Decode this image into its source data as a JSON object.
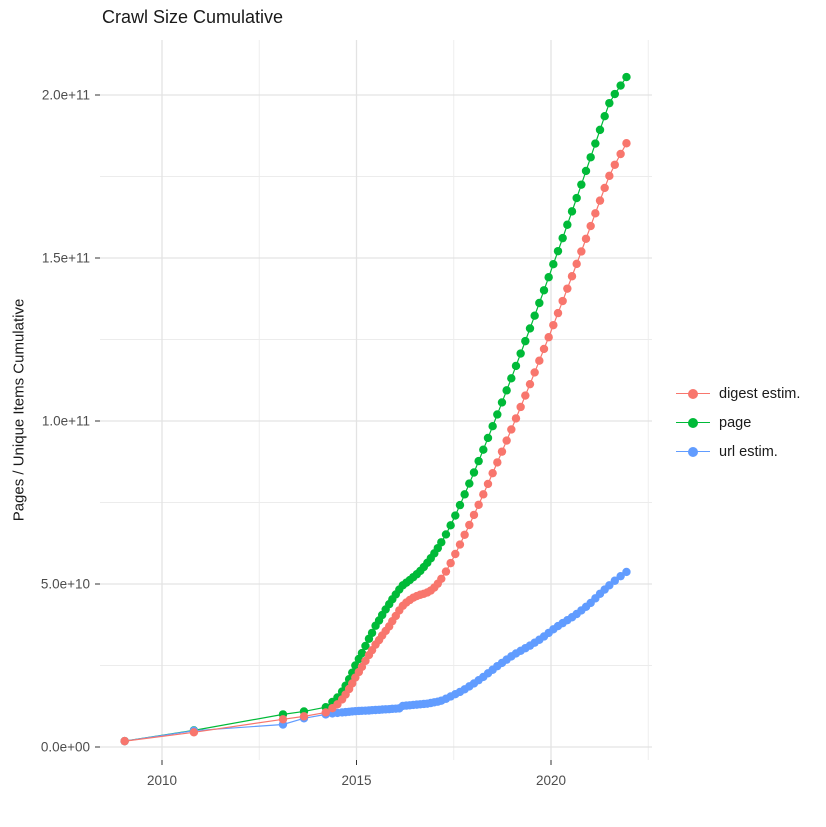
{
  "title": "Crawl Size Cumulative",
  "y_axis": {
    "title": "Pages / Unique Items Cumulative",
    "tick_labels": [
      "0.0e+00",
      "5.0e+10",
      "1.0e+11",
      "1.5e+11",
      "2.0e+11"
    ],
    "tick_values": [
      0,
      50,
      100,
      150,
      200
    ],
    "minor_tick_values": [
      25,
      75,
      125,
      175
    ]
  },
  "x_axis": {
    "title": "",
    "tick_labels": [
      "2010",
      "2015",
      "2020"
    ],
    "tick_values": [
      2010,
      2015,
      2020
    ],
    "minor_tick_values": [
      2012.5,
      2017.5,
      2022.5
    ]
  },
  "legend": {
    "items": [
      {
        "label": "digest estim.",
        "color": "#F8766D"
      },
      {
        "label": "page",
        "color": "#00BA38"
      },
      {
        "label": "url estim.",
        "color": "#619CFF"
      }
    ]
  },
  "colors": {
    "background": "#FFFFFF",
    "grid_major": "#E3E3E3",
    "grid_minor": "#ECECEC",
    "tick_mark": "#333333",
    "tick_label": "#4D4D4D",
    "text": "#1A1A1A",
    "digest": "#F8766D",
    "page": "#00BA38",
    "url": "#619CFF"
  },
  "chart_data": {
    "type": "line",
    "title": "Crawl Size Cumulative",
    "xlabel": "",
    "ylabel": "Pages / Unique Items Cumulative",
    "value_unit": "1e9 (values below are in billions of pages / unique items)",
    "xlim": [
      2008.4,
      2022.6
    ],
    "ylim": [
      0,
      216
    ],
    "x_ticks": [
      2010,
      2015,
      2020
    ],
    "y_ticks": [
      0,
      50,
      100,
      150,
      200
    ],
    "grid": true,
    "legend_position": "right",
    "marker": "point",
    "x": [
      2009.04,
      2010.82,
      2013.11,
      2013.65,
      2014.21,
      2014.38,
      2014.51,
      2014.63,
      2014.72,
      2014.81,
      2014.89,
      2014.97,
      2015.06,
      2015.14,
      2015.23,
      2015.32,
      2015.4,
      2015.49,
      2015.58,
      2015.66,
      2015.75,
      2015.84,
      2015.92,
      2016.01,
      2016.1,
      2016.19,
      2016.28,
      2016.37,
      2016.46,
      2016.55,
      2016.64,
      2016.73,
      2016.82,
      2016.91,
      2017.0,
      2017.09,
      2017.18,
      2017.3,
      2017.42,
      2017.54,
      2017.66,
      2017.78,
      2017.9,
      2018.02,
      2018.14,
      2018.26,
      2018.38,
      2018.5,
      2018.62,
      2018.74,
      2018.86,
      2018.98,
      2019.1,
      2019.22,
      2019.34,
      2019.46,
      2019.58,
      2019.7,
      2019.82,
      2019.94,
      2020.06,
      2020.18,
      2020.3,
      2020.42,
      2020.54,
      2020.66,
      2020.78,
      2020.9,
      2021.02,
      2021.14,
      2021.26,
      2021.38,
      2021.5,
      2021.64,
      2021.79,
      2021.94
    ],
    "series": [
      {
        "name": "page",
        "color": "#00BA38",
        "values": [
          1.8,
          5.1,
          10.0,
          10.9,
          12.2,
          13.8,
          15.2,
          17.0,
          18.8,
          20.8,
          22.8,
          25.0,
          27.0,
          28.8,
          31.0,
          33.2,
          35.0,
          37.2,
          38.8,
          40.5,
          42.2,
          43.8,
          45.3,
          46.8,
          48.3,
          49.6,
          50.4,
          51.2,
          52.1,
          53.0,
          54.0,
          55.2,
          56.5,
          57.9,
          59.4,
          61.0,
          62.8,
          65.2,
          68.0,
          71.0,
          74.2,
          77.5,
          80.8,
          84.2,
          87.7,
          91.2,
          94.8,
          98.4,
          102.0,
          105.7,
          109.4,
          113.1,
          116.9,
          120.7,
          124.5,
          128.4,
          132.3,
          136.2,
          140.1,
          144.1,
          148.1,
          152.1,
          156.1,
          160.2,
          164.3,
          168.4,
          172.5,
          176.7,
          180.9,
          185.1,
          189.3,
          193.5,
          197.5,
          200.3,
          202.9,
          205.5
        ]
      },
      {
        "name": "url estim.",
        "color": "#619CFF",
        "values": [
          1.8,
          5.0,
          6.9,
          8.8,
          10.0,
          10.3,
          10.45,
          10.6,
          10.7,
          10.8,
          10.9,
          11.0,
          11.05,
          11.1,
          11.15,
          11.2,
          11.3,
          11.35,
          11.4,
          11.5,
          11.55,
          11.6,
          11.7,
          11.75,
          11.85,
          12.6,
          12.7,
          12.8,
          12.9,
          13.0,
          13.1,
          13.2,
          13.3,
          13.5,
          13.7,
          13.9,
          14.2,
          14.8,
          15.5,
          16.2,
          16.9,
          17.7,
          18.6,
          19.5,
          20.5,
          21.5,
          22.6,
          23.7,
          24.8,
          25.8,
          26.8,
          27.8,
          28.7,
          29.5,
          30.3,
          31.1,
          32.0,
          32.9,
          33.9,
          35.0,
          36.1,
          37.1,
          38.0,
          38.9,
          39.8,
          40.8,
          41.9,
          43.0,
          44.2,
          45.6,
          47.0,
          48.3,
          49.6,
          51.0,
          52.4,
          53.7
        ]
      },
      {
        "name": "digest estim.",
        "color": "#F8766D",
        "values": [
          1.8,
          4.5,
          8.5,
          9.4,
          10.6,
          11.9,
          13.1,
          14.6,
          16.1,
          17.8,
          19.5,
          21.3,
          23.0,
          24.6,
          26.4,
          28.2,
          29.7,
          31.4,
          32.8,
          34.2,
          35.6,
          37.0,
          38.6,
          40.2,
          41.9,
          43.3,
          44.3,
          45.1,
          45.8,
          46.3,
          46.7,
          47.0,
          47.4,
          48.0,
          48.9,
          50.1,
          51.6,
          53.8,
          56.4,
          59.2,
          62.1,
          65.1,
          68.1,
          71.2,
          74.3,
          77.5,
          80.7,
          84.0,
          87.3,
          90.6,
          94.0,
          97.4,
          100.8,
          104.3,
          107.8,
          111.3,
          114.9,
          118.5,
          122.1,
          125.7,
          129.4,
          133.1,
          136.8,
          140.6,
          144.4,
          148.2,
          152.0,
          155.9,
          159.8,
          163.7,
          167.6,
          171.5,
          175.2,
          178.6,
          181.9,
          185.2
        ]
      }
    ]
  }
}
